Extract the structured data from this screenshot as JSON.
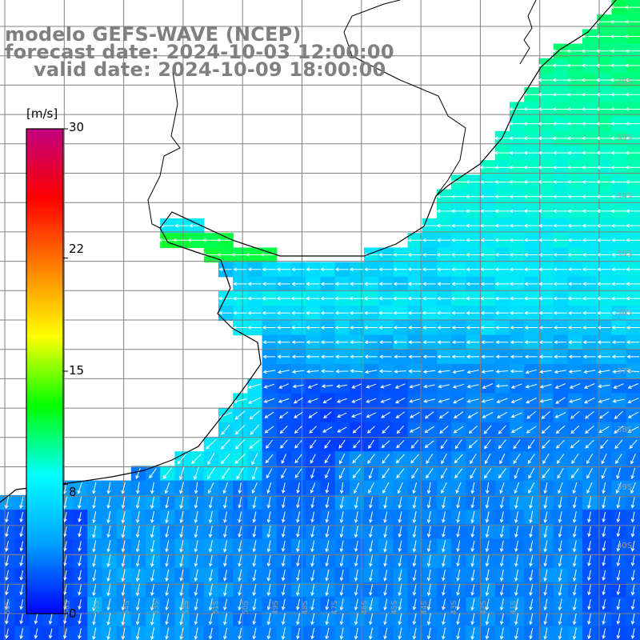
{
  "title": {
    "line1": "modelo GEFS-WAVE (NCEP)",
    "line2": "forecast date: 2024-10-03 12:00:00",
    "line3": "valid date: 2024-10-09 18:00:00"
  },
  "colorbar": {
    "unit": "[m/s]",
    "min": 0,
    "max": 30,
    "ticks": [
      "30",
      "22",
      "15",
      "8",
      "0"
    ],
    "tick_values": [
      30,
      22,
      15,
      8,
      0
    ],
    "stops": [
      "#0000ff",
      "#00a0ff",
      "#00ffff",
      "#00ff00",
      "#ffff00",
      "#ff8000",
      "#ff0000",
      "#c00080"
    ]
  },
  "grid": {
    "lat_labels": [
      "29S",
      "33S",
      "34S",
      "35S",
      "36S",
      "37S",
      "38S",
      "39S",
      "40S"
    ],
    "lon_labels": [
      "58S",
      "57S",
      "56S",
      "55S",
      "54S",
      "53S",
      "52S",
      "51S",
      "50S",
      "49S",
      "48S",
      "47S",
      "46S",
      "45S",
      "44S",
      "43S",
      "42S",
      "41S"
    ]
  },
  "colors": {
    "land": "#ffffff",
    "coast": "#000000",
    "grid": "#808080",
    "arrow": "#ffffff",
    "title": "#808080"
  }
}
